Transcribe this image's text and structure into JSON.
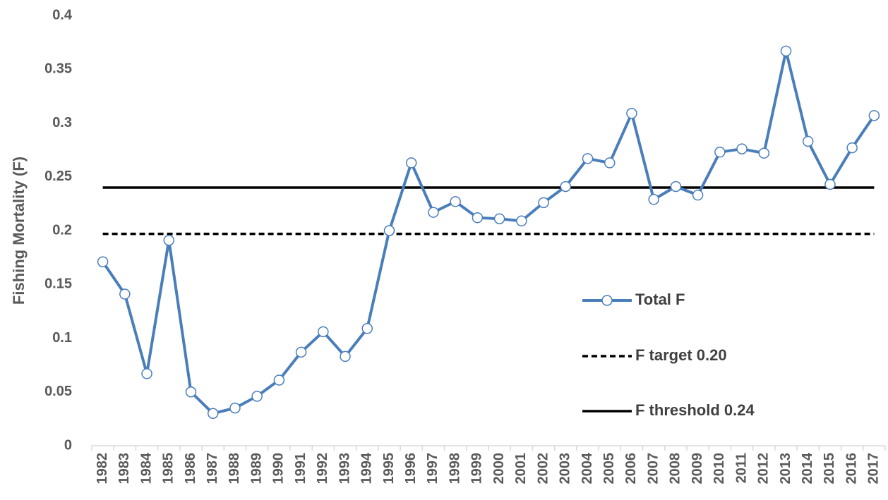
{
  "chart_data": {
    "type": "line",
    "y_label": "Fishing Mortality (F)",
    "categories": [
      "1982",
      "1983",
      "1984",
      "1985",
      "1986",
      "1987",
      "1988",
      "1989",
      "1990",
      "1991",
      "1992",
      "1993",
      "1994",
      "1995",
      "1996",
      "1997",
      "1998",
      "1999",
      "2000",
      "2001",
      "2002",
      "2003",
      "2004",
      "2005",
      "2006",
      "2007",
      "2008",
      "2009",
      "2010",
      "2011",
      "2012",
      "2013",
      "2014",
      "2015",
      "2016",
      "2017"
    ],
    "series": [
      {
        "name": "Total F",
        "color": "#4a7ebb",
        "style": "solid",
        "marker": "circle",
        "values": [
          0.171,
          0.141,
          0.067,
          0.191,
          0.05,
          0.03,
          0.035,
          0.046,
          0.061,
          0.087,
          0.106,
          0.083,
          0.109,
          0.2,
          0.263,
          0.217,
          0.227,
          0.212,
          0.211,
          0.209,
          0.226,
          0.241,
          0.267,
          0.263,
          0.309,
          0.229,
          0.241,
          0.233,
          0.273,
          0.276,
          0.272,
          0.367,
          0.283,
          0.243,
          0.277,
          0.307
        ]
      },
      {
        "name": "F target 0.20",
        "color": "#000000",
        "style": "dashed",
        "marker": "none",
        "values": [
          0.197,
          0.197,
          0.197,
          0.197,
          0.197,
          0.197,
          0.197,
          0.197,
          0.197,
          0.197,
          0.197,
          0.197,
          0.197,
          0.197,
          0.197,
          0.197,
          0.197,
          0.197,
          0.197,
          0.197,
          0.197,
          0.197,
          0.197,
          0.197,
          0.197,
          0.197,
          0.197,
          0.197,
          0.197,
          0.197,
          0.197,
          0.197,
          0.197,
          0.197,
          0.197,
          0.197
        ]
      },
      {
        "name": "F threshold 0.24",
        "color": "#000000",
        "style": "solid",
        "marker": "none",
        "values": [
          0.24,
          0.24,
          0.24,
          0.24,
          0.24,
          0.24,
          0.24,
          0.24,
          0.24,
          0.24,
          0.24,
          0.24,
          0.24,
          0.24,
          0.24,
          0.24,
          0.24,
          0.24,
          0.24,
          0.24,
          0.24,
          0.24,
          0.24,
          0.24,
          0.24,
          0.24,
          0.24,
          0.24,
          0.24,
          0.24,
          0.24,
          0.24,
          0.24,
          0.24,
          0.24,
          0.24
        ]
      }
    ],
    "ylim": [
      0,
      0.4
    ],
    "yticks": [
      0,
      0.05,
      0.1,
      0.15,
      0.2,
      0.25,
      0.3,
      0.35,
      0.4
    ],
    "grid": false
  }
}
